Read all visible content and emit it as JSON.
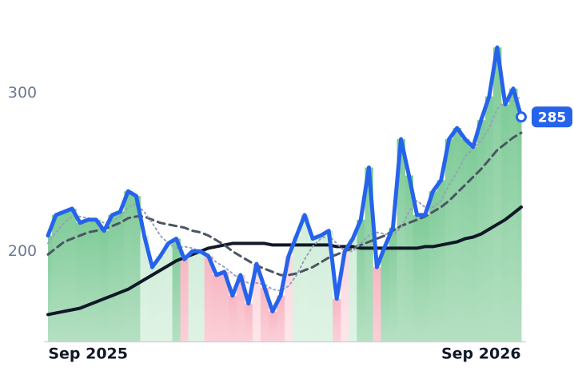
{
  "chart_data": {
    "type": "line",
    "categories": [
      null,
      null,
      null,
      null,
      null,
      "Sep 2025",
      null,
      null,
      null,
      null,
      null,
      null,
      null,
      null,
      null,
      null,
      null,
      null,
      null,
      null,
      null,
      null,
      null,
      null,
      null,
      null,
      null,
      null,
      null,
      null,
      null,
      null,
      null,
      null,
      null,
      null,
      null,
      null,
      null,
      null,
      null,
      null,
      null,
      null,
      null,
      null,
      null,
      null,
      null,
      null,
      null,
      null,
      null,
      null,
      "Sep 2026",
      null,
      null,
      null,
      null,
      null
    ],
    "series": [
      {
        "color": "#2563eb",
        "style": "solid",
        "values": [
          210,
          223,
          225,
          227,
          218,
          220,
          220,
          213,
          223,
          225,
          238,
          235,
          210,
          190,
          197,
          205,
          208,
          195,
          200,
          200,
          197,
          185,
          187,
          172,
          185,
          167,
          192,
          177,
          162,
          172,
          197,
          210,
          223,
          208,
          210,
          213,
          170,
          200,
          208,
          220,
          253,
          190,
          203,
          215,
          271,
          248,
          223,
          223,
          238,
          245,
          271,
          278,
          271,
          266,
          283,
          298,
          329,
          293,
          303,
          285
        ]
      },
      {
        "color": "#94a3b8",
        "style": "dotted",
        "values": [
          205,
          212,
          218,
          222,
          222,
          221,
          220,
          218,
          219,
          222,
          228,
          230,
          225,
          218,
          210,
          205,
          202,
          203,
          202,
          200,
          198,
          193,
          190,
          186,
          182,
          180,
          180,
          179,
          176,
          175,
          178,
          185,
          195,
          203,
          208,
          210,
          205,
          200,
          200,
          205,
          210,
          212,
          211,
          210,
          215,
          225,
          232,
          228,
          228,
          232,
          242,
          250,
          260,
          265,
          270,
          278,
          290,
          295,
          295,
          298
        ]
      },
      {
        "color": "#4b5563",
        "style": "dashed",
        "values": [
          198,
          202,
          206,
          208,
          210,
          212,
          213,
          214,
          216,
          218,
          221,
          222,
          222,
          220,
          218,
          217,
          216,
          215,
          213,
          212,
          210,
          207,
          204,
          200,
          197,
          194,
          191,
          189,
          187,
          185,
          185,
          186,
          188,
          190,
          193,
          196,
          198,
          200,
          202,
          204,
          206,
          208,
          210,
          213,
          216,
          218,
          220,
          222,
          225,
          228,
          232,
          237,
          242,
          247,
          252,
          258,
          264,
          268,
          272,
          275
        ]
      },
      {
        "color": "#111827",
        "style": "solid",
        "values": [
          160,
          161,
          162,
          163,
          164,
          166,
          168,
          170,
          172,
          174,
          176,
          179,
          182,
          185,
          188,
          191,
          194,
          196,
          198,
          200,
          202,
          203,
          204,
          205,
          205,
          205,
          205,
          205,
          204,
          204,
          204,
          204,
          204,
          204,
          204,
          204,
          203,
          203,
          203,
          202,
          202,
          202,
          202,
          202,
          202,
          202,
          202,
          203,
          203,
          204,
          205,
          206,
          208,
          209,
          211,
          214,
          217,
          220,
          224,
          228
        ]
      }
    ],
    "ylim": [
      143,
      359
    ],
    "yticks": [
      200,
      300
    ]
  }
}
